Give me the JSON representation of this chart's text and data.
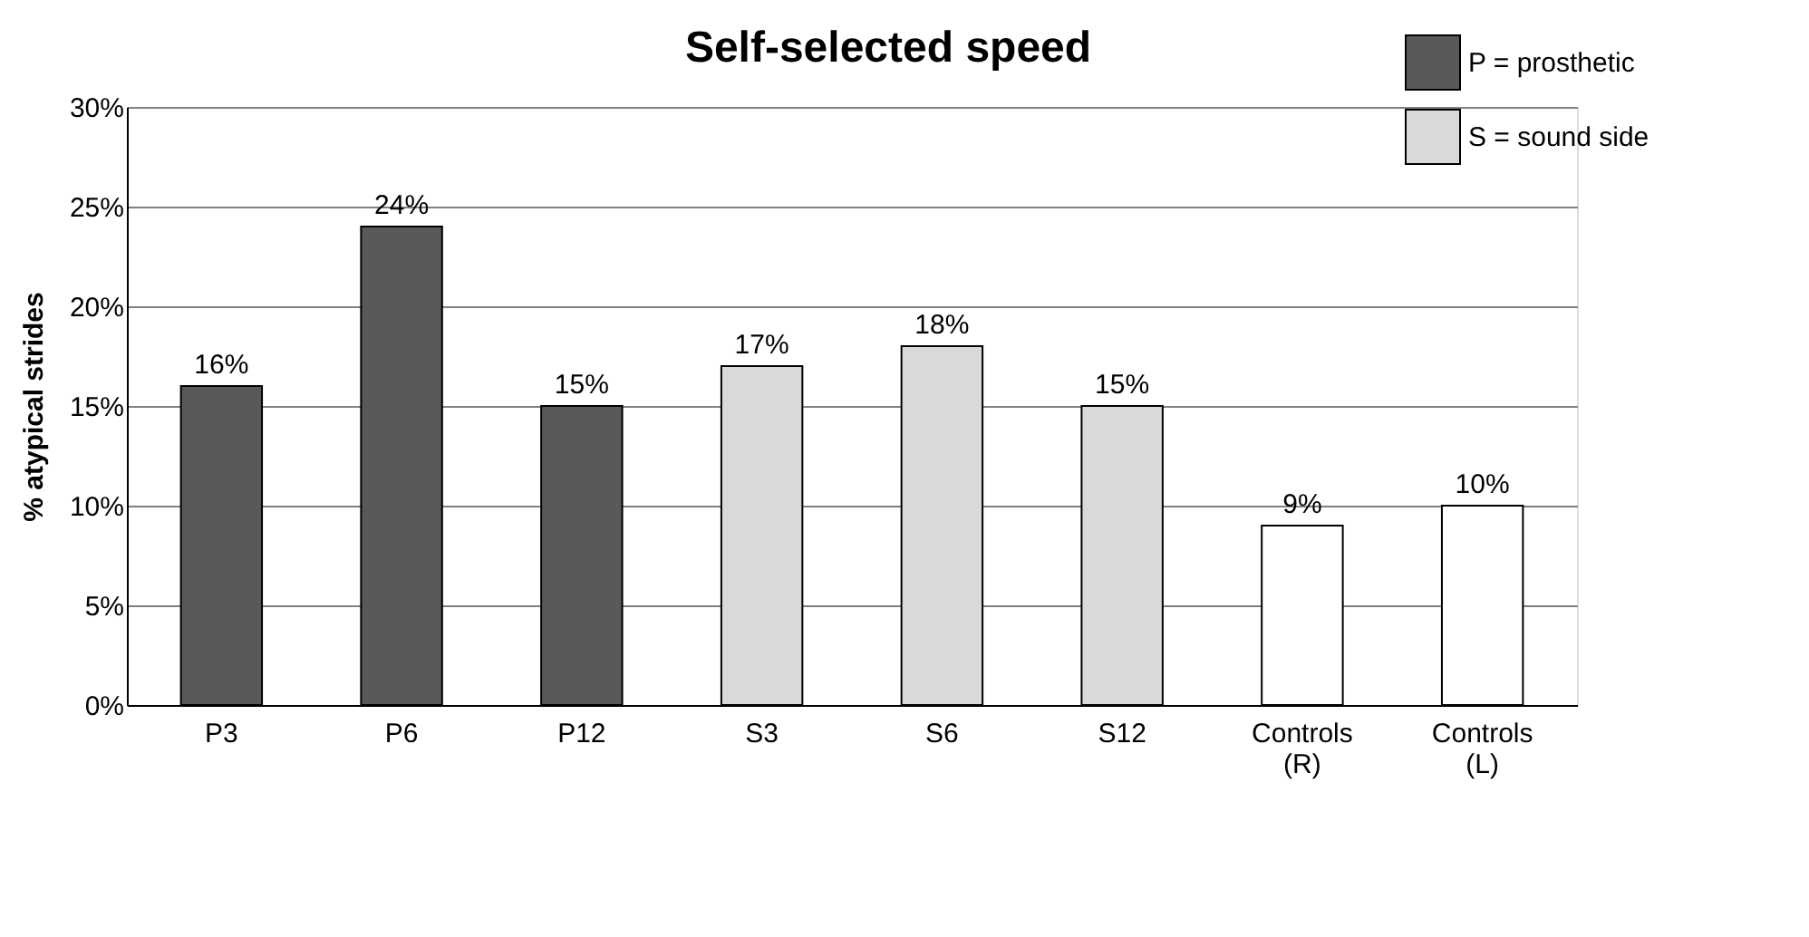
{
  "chart_data": {
    "type": "bar",
    "title": "Self-selected speed",
    "ylabel": "% atypical strides",
    "categories": [
      "P3",
      "P6",
      "P12",
      "S3",
      "S6",
      "S12",
      "Controls (R)",
      "Controls (L)"
    ],
    "series": [
      {
        "name": "P = prosthetic",
        "color": "#595959",
        "values": [
          16,
          24,
          15,
          null,
          null,
          null,
          null,
          null
        ],
        "value_labels": [
          "16%",
          "24%",
          "15%",
          null,
          null,
          null,
          null,
          null
        ]
      },
      {
        "name": "S = sound side",
        "color": "#d9d9d9",
        "values": [
          null,
          null,
          null,
          17,
          18,
          15,
          null,
          null
        ],
        "value_labels": [
          null,
          null,
          null,
          "17%",
          "18%",
          "15%",
          null,
          null
        ]
      },
      {
        "color": "#ffffff",
        "values": [
          null,
          null,
          null,
          null,
          null,
          null,
          9,
          10
        ],
        "value_labels": [
          null,
          null,
          null,
          null,
          null,
          null,
          "9%",
          "10%"
        ]
      }
    ],
    "ylim": [
      0,
      30
    ],
    "yticks": [
      {
        "value": 0,
        "label": "0%"
      },
      {
        "value": 5,
        "label": "5%"
      },
      {
        "value": 10,
        "label": "10%"
      },
      {
        "value": 15,
        "label": "15%"
      },
      {
        "value": 20,
        "label": "20%"
      },
      {
        "value": 25,
        "label": "25%"
      },
      {
        "value": 30,
        "label": "30%"
      }
    ],
    "grid": "y",
    "legend": "top right"
  }
}
